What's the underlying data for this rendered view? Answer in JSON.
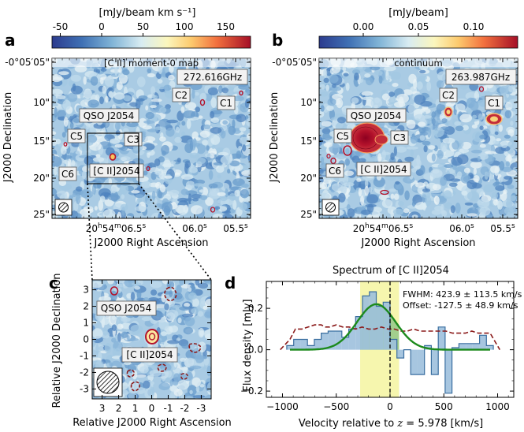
{
  "panels": {
    "a": {
      "letter": "a",
      "colorbar_unit": "[mJy/beam km s⁻¹]",
      "colorbar_ticks": [
        "-50",
        "0",
        "50",
        "100",
        "150"
      ],
      "colorbar_range": [
        -60,
        180
      ],
      "map_title": "[C II] moment-0 map",
      "frequency": "272.616GHz",
      "ylabel": "J2000 Declination",
      "xlabel": "J2000 Right Ascension",
      "y_ticks": [
        "-0°05′05\"",
        "10\"",
        "15\"",
        "20\"",
        "25\""
      ],
      "x_ticks": [
        "20h54m06.5s",
        "06.0s",
        "05.5s"
      ],
      "labels": [
        "C1",
        "C2",
        "C3",
        "C5",
        "C6",
        "QSO J2054",
        "[C II]2054"
      ]
    },
    "b": {
      "letter": "b",
      "colorbar_unit": "[mJy/beam]",
      "colorbar_ticks": [
        "0.00",
        "0.05",
        "0.10"
      ],
      "colorbar_range": [
        -0.04,
        0.14
      ],
      "map_title": "continuum",
      "frequency": "263.987GHz",
      "ylabel": "J2000 Declination",
      "xlabel": "J2000 Right Ascension",
      "y_ticks": [
        "-0°05′05\"",
        "10\"",
        "15\"",
        "20\"",
        "25\""
      ],
      "x_ticks": [
        "20h54m06.5s",
        "06.0s",
        "05.5s"
      ],
      "labels": [
        "C1",
        "C2",
        "C3",
        "C5",
        "C6",
        "QSO J2054",
        "[C II]2054"
      ]
    },
    "c": {
      "letter": "c",
      "ylabel": "Relative J2000 Declination",
      "xlabel": "Relative J2000 Right Ascension",
      "x_ticks": [
        "3",
        "2",
        "1",
        "0",
        "-1",
        "-2",
        "-3"
      ],
      "y_ticks": [
        "3",
        "2",
        "1",
        "0",
        "-1",
        "-2",
        "-3"
      ],
      "labels": [
        "QSO J2054",
        "[C II]2054"
      ]
    },
    "d": {
      "letter": "d",
      "title": "Spectrum of [C II]2054",
      "annotations": [
        "FWHM: 423.9 ± 113.5 km/s",
        "Offset: -127.5 ± 48.9 km/s"
      ]
    }
  },
  "chart_data": {
    "type": "bar",
    "title": "Spectrum of [C II]2054",
    "xlabel": "Velocity relative to z = 5.978 [km/s]",
    "ylabel": "Flux density [mJy]",
    "xlim": [
      -1150,
      1150
    ],
    "ylim": [
      -0.23,
      0.33
    ],
    "x_ticks": [
      -1000,
      -500,
      0,
      500,
      1000
    ],
    "y_ticks": [
      -0.2,
      0.0,
      0.2
    ],
    "bin_width": 64,
    "x": [
      -928,
      -864,
      -800,
      -736,
      -672,
      -608,
      -544,
      -480,
      -416,
      -352,
      -288,
      -224,
      -160,
      -96,
      -32,
      32,
      96,
      160,
      224,
      288,
      352,
      416,
      480,
      544,
      608,
      672,
      736,
      800,
      864,
      928
    ],
    "flux": [
      0.02,
      0.05,
      0.05,
      0.02,
      0.05,
      0.08,
      0.09,
      0.09,
      0.06,
      0.1,
      0.16,
      0.26,
      0.28,
      0.21,
      0.23,
      0.05,
      -0.04,
      0.0,
      -0.12,
      -0.12,
      0.02,
      -0.12,
      0.11,
      -0.21,
      0.01,
      0.03,
      0.03,
      0.03,
      0.07,
      0.02
    ],
    "noise_x": [
      -1020,
      -930,
      -880,
      -820,
      -760,
      -700,
      -640,
      -600,
      -560,
      -500,
      -440,
      -380,
      -320,
      -260,
      -200,
      -140,
      -80,
      -20,
      40,
      100,
      160,
      220,
      280,
      340,
      400,
      460,
      520,
      580,
      640,
      700,
      760,
      820,
      880,
      930,
      1020
    ],
    "noise": [
      0.0,
      0.05,
      0.1,
      0.1,
      0.11,
      0.12,
      0.12,
      0.11,
      0.11,
      0.12,
      0.11,
      0.11,
      0.1,
      0.11,
      0.1,
      0.1,
      0.11,
      0.1,
      0.1,
      0.09,
      0.09,
      0.1,
      0.09,
      0.09,
      0.09,
      0.09,
      0.09,
      0.08,
      0.08,
      0.08,
      0.09,
      0.08,
      0.08,
      0.08,
      0.0
    ],
    "gaussian": {
      "amplitude": 0.22,
      "center": -127.5,
      "fwhm": 423.9
    },
    "line_region": [
      -278,
      84
    ],
    "annotations": [
      "FWHM: 423.9 ± 113.5 km/s",
      "Offset: -127.5 ± 48.9 km/s"
    ],
    "colors": {
      "bars": "#9dc0dd",
      "bar_edge": "#3b6fa0",
      "noise": "#8b1a1a",
      "fit": "#1c8a1c",
      "region": "#f4f4a0"
    }
  }
}
